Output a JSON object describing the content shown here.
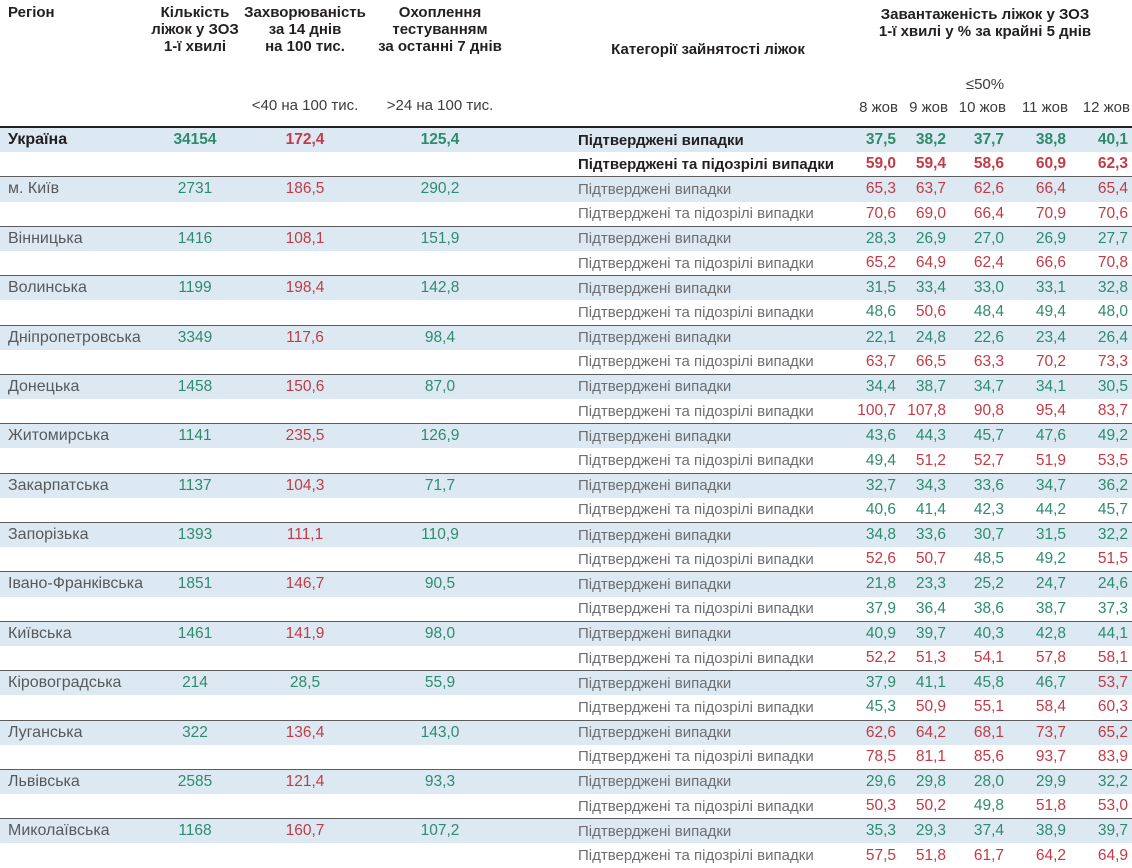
{
  "colors": {
    "green": "#2e8b6e",
    "red": "#c23b46",
    "row_blue": "#dce9f2",
    "label_gray": "#6d6e71",
    "header_dark": "#231f20"
  },
  "thresholds": {
    "occupancy_green_max": 50,
    "incidence_green_below": 40,
    "testing_green_above": 24
  },
  "header": {
    "region": "Регіон",
    "beds": "Кількість\nліжок у ЗОЗ\n1-ї хвилі",
    "incidence": "Захворюваність\nза 14 днів\nна 100 тис.",
    "testing": "Охоплення\nтестуванням\nза останні 7 днів",
    "categories": "Категорії зайнятості ліжок",
    "occupancy": "Завантаженість ліжок у ЗОЗ\n1-ї хвилі у % за крайні 5 днів",
    "incidence_condition": "<40 на 100 тис.",
    "testing_condition": ">24 на 100 тис.",
    "occupancy_condition": "≤50%"
  },
  "row_labels": {
    "confirmed": "Підтверджені випадки",
    "suspected": "Підтверджені та підозрілі випадки"
  },
  "chart_data": {
    "type": "table",
    "title": "Завантаженість ліжок у ЗОЗ 1-ї хвилі у % за крайні 5 днів",
    "columns": [
      "Регіон",
      "Кількість ліжок у ЗОЗ 1-ї хвилі",
      "Захворюваність за 14 днів на 100 тис.",
      "Охоплення тестуванням за останні 7 днів",
      "Категорії зайнятості ліжок",
      "8 жов",
      "9 жов",
      "10 жов",
      "11 жов",
      "12 жов"
    ],
    "dates": [
      "8 жов",
      "9 жов",
      "10 жов",
      "11 жов",
      "12 жов"
    ],
    "regions": [
      {
        "region": "Україна",
        "bold": true,
        "beds": "34154",
        "incidence": "172,4",
        "testing": "125,4",
        "confirmed": [
          "37,5",
          "38,2",
          "37,7",
          "38,8",
          "40,1"
        ],
        "suspected": [
          "59,0",
          "59,4",
          "58,6",
          "60,9",
          "62,3"
        ]
      },
      {
        "region": "м. Київ",
        "bold": false,
        "beds": "2731",
        "incidence": "186,5",
        "testing": "290,2",
        "confirmed": [
          "65,3",
          "63,7",
          "62,6",
          "66,4",
          "65,4"
        ],
        "suspected": [
          "70,6",
          "69,0",
          "66,4",
          "70,9",
          "70,6"
        ]
      },
      {
        "region": "Вінницька",
        "bold": false,
        "beds": "1416",
        "incidence": "108,1",
        "testing": "151,9",
        "confirmed": [
          "28,3",
          "26,9",
          "27,0",
          "26,9",
          "27,7"
        ],
        "suspected": [
          "65,2",
          "64,9",
          "62,4",
          "66,6",
          "70,8"
        ]
      },
      {
        "region": "Волинська",
        "bold": false,
        "beds": "1199",
        "incidence": "198,4",
        "testing": "142,8",
        "confirmed": [
          "31,5",
          "33,4",
          "33,0",
          "33,1",
          "32,8"
        ],
        "suspected": [
          "48,6",
          "50,6",
          "48,4",
          "49,4",
          "48,0"
        ]
      },
      {
        "region": "Дніпропетровська",
        "bold": false,
        "beds": "3349",
        "incidence": "117,6",
        "testing": "98,4",
        "confirmed": [
          "22,1",
          "24,8",
          "22,6",
          "23,4",
          "26,4"
        ],
        "suspected": [
          "63,7",
          "66,5",
          "63,3",
          "70,2",
          "73,3"
        ]
      },
      {
        "region": "Донецька",
        "bold": false,
        "beds": "1458",
        "incidence": "150,6",
        "testing": "87,0",
        "confirmed": [
          "34,4",
          "38,7",
          "34,7",
          "34,1",
          "30,5"
        ],
        "suspected": [
          "100,7",
          "107,8",
          "90,8",
          "95,4",
          "83,7"
        ]
      },
      {
        "region": "Житомирська",
        "bold": false,
        "beds": "1141",
        "incidence": "235,5",
        "testing": "126,9",
        "confirmed": [
          "43,6",
          "44,3",
          "45,7",
          "47,6",
          "49,2"
        ],
        "suspected": [
          "49,4",
          "51,2",
          "52,7",
          "51,9",
          "53,5"
        ]
      },
      {
        "region": "Закарпатська",
        "bold": false,
        "beds": "1137",
        "incidence": "104,3",
        "testing": "71,7",
        "confirmed": [
          "32,7",
          "34,3",
          "33,6",
          "34,7",
          "36,2"
        ],
        "suspected": [
          "40,6",
          "41,4",
          "42,3",
          "44,2",
          "45,7"
        ]
      },
      {
        "region": "Запорізька",
        "bold": false,
        "beds": "1393",
        "incidence": "111,1",
        "testing": "110,9",
        "confirmed": [
          "34,8",
          "33,6",
          "30,7",
          "31,5",
          "32,2"
        ],
        "suspected": [
          "52,6",
          "50,7",
          "48,5",
          "49,2",
          "51,5"
        ]
      },
      {
        "region": "Івано-Франківська",
        "bold": false,
        "beds": "1851",
        "incidence": "146,7",
        "testing": "90,5",
        "confirmed": [
          "21,8",
          "23,3",
          "25,2",
          "24,7",
          "24,6"
        ],
        "suspected": [
          "37,9",
          "36,4",
          "38,6",
          "38,7",
          "37,3"
        ]
      },
      {
        "region": "Київська",
        "bold": false,
        "beds": "1461",
        "incidence": "141,9",
        "testing": "98,0",
        "confirmed": [
          "40,9",
          "39,7",
          "40,3",
          "42,8",
          "44,1"
        ],
        "suspected": [
          "52,2",
          "51,3",
          "54,1",
          "57,8",
          "58,1"
        ]
      },
      {
        "region": "Кіровоградська",
        "bold": false,
        "beds": "214",
        "incidence": "28,5",
        "testing": "55,9",
        "confirmed": [
          "37,9",
          "41,1",
          "45,8",
          "46,7",
          "53,7"
        ],
        "suspected": [
          "45,3",
          "50,9",
          "55,1",
          "58,4",
          "60,3"
        ]
      },
      {
        "region": "Луганська",
        "bold": false,
        "beds": "322",
        "incidence": "136,4",
        "testing": "143,0",
        "confirmed": [
          "62,6",
          "64,2",
          "68,1",
          "73,7",
          "65,2"
        ],
        "suspected": [
          "78,5",
          "81,1",
          "85,6",
          "93,7",
          "83,9"
        ]
      },
      {
        "region": "Львівська",
        "bold": false,
        "beds": "2585",
        "incidence": "121,4",
        "testing": "93,3",
        "confirmed": [
          "29,6",
          "29,8",
          "28,0",
          "29,9",
          "32,2"
        ],
        "suspected": [
          "50,3",
          "50,2",
          "49,8",
          "51,8",
          "53,0"
        ]
      },
      {
        "region": "Миколаївська",
        "bold": false,
        "beds": "1168",
        "incidence": "160,7",
        "testing": "107,2",
        "confirmed": [
          "35,3",
          "29,3",
          "37,4",
          "38,9",
          "39,7"
        ],
        "suspected": [
          "57,5",
          "51,8",
          "61,7",
          "64,2",
          "64,9"
        ]
      }
    ]
  }
}
